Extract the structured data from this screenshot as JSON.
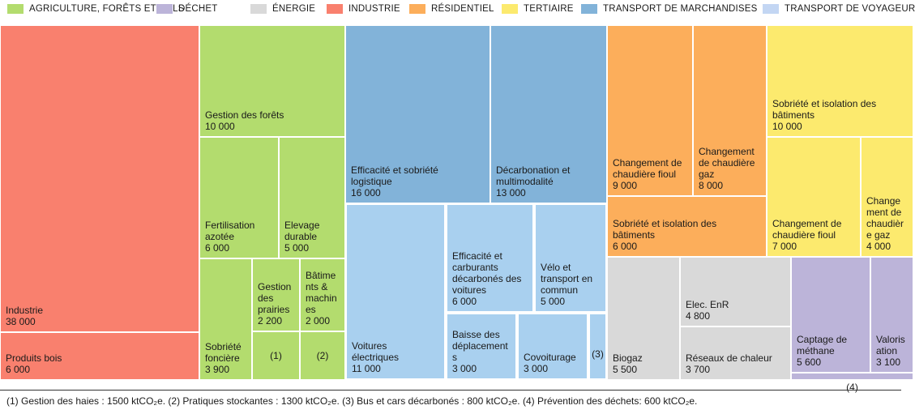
{
  "colors": {
    "agriculture": "#b3dc6e",
    "dechet": "#bcb4d9",
    "energie": "#d9d9d9",
    "industrie": "#f9806e",
    "residentiel": "#fcae5b",
    "tertiaire": "#fcea6e",
    "transport_marchandises": "#82b3d9",
    "transport_voyageurs": "#a9d0ef"
  },
  "legend": [
    {
      "label": "AGRICULTURE, FORÊTS ET SOLS",
      "color": "#b3dc6e"
    },
    {
      "label": "DÉCHET",
      "color": "#bcb4d9"
    },
    {
      "label": "ÉNERGIE",
      "color": "#d9d9d9"
    },
    {
      "label": "INDUSTRIE",
      "color": "#f9806e"
    },
    {
      "label": "RÉSIDENTIEL",
      "color": "#fcae5b"
    },
    {
      "label": "TERTIAIRE",
      "color": "#fcea6e"
    },
    {
      "label": "TRANSPORT DE MARCHANDISES",
      "color": "#82b3d9"
    },
    {
      "label": "TRANSPORT DE VOYAGEURS",
      "color": "#c3d6f3"
    }
  ],
  "chart_data": {
    "type": "treemap",
    "unit": "ktCO2e",
    "items": [
      {
        "sector": "INDUSTRIE",
        "label": "Industrie",
        "value": 38000,
        "value_label": "38 000"
      },
      {
        "sector": "INDUSTRIE",
        "label": "Produits bois",
        "value": 6000,
        "value_label": "6 000"
      },
      {
        "sector": "AGRICULTURE, FORÊTS ET SOLS",
        "label": "Gestion des forêts",
        "value": 10000,
        "value_label": "10 000"
      },
      {
        "sector": "AGRICULTURE, FORÊTS ET SOLS",
        "label": "Fertilisation\nazotée",
        "value": 6000,
        "value_label": "6 000"
      },
      {
        "sector": "AGRICULTURE, FORÊTS ET SOLS",
        "label": "Elevage\ndurable",
        "value": 5000,
        "value_label": "5 000"
      },
      {
        "sector": "AGRICULTURE, FORÊTS ET SOLS",
        "label": "Sobriété\nfoncière",
        "value": 3900,
        "value_label": "3 900"
      },
      {
        "sector": "AGRICULTURE, FORÊTS ET SOLS",
        "label": "Gestion\ndes\nprairies",
        "value": 2200,
        "value_label": "2 200"
      },
      {
        "sector": "AGRICULTURE, FORÊTS ET SOLS",
        "label": "Bâtime\nnts &\nmachin\nes",
        "value": 2000,
        "value_label": "2 000"
      },
      {
        "sector": "AGRICULTURE, FORÊTS ET SOLS",
        "label": "(1)",
        "value": 1500,
        "value_label": ""
      },
      {
        "sector": "AGRICULTURE, FORÊTS ET SOLS",
        "label": "(2)",
        "value": 1300,
        "value_label": ""
      },
      {
        "sector": "TRANSPORT DE MARCHANDISES",
        "label": "Efficacité et sobriété\nlogistique",
        "value": 16000,
        "value_label": "16 000"
      },
      {
        "sector": "TRANSPORT DE MARCHANDISES",
        "label": "Décarbonation et\nmultimodalité",
        "value": 13000,
        "value_label": "13 000"
      },
      {
        "sector": "TRANSPORT DE VOYAGEURS",
        "label": "Voitures\nélectriques",
        "value": 11000,
        "value_label": "11 000"
      },
      {
        "sector": "TRANSPORT DE VOYAGEURS",
        "label": "Efficacité et\ncarburants\ndécarbonés des\nvoitures",
        "value": 6000,
        "value_label": "6 000"
      },
      {
        "sector": "TRANSPORT DE VOYAGEURS",
        "label": "Vélo et\ntransport en\ncommun",
        "value": 5000,
        "value_label": "5 000"
      },
      {
        "sector": "TRANSPORT DE VOYAGEURS",
        "label": "Baisse des\ndéplacement\ns",
        "value": 3000,
        "value_label": "3 000"
      },
      {
        "sector": "TRANSPORT DE VOYAGEURS",
        "label": "Covoiturage",
        "value": 3000,
        "value_label": "3 000"
      },
      {
        "sector": "TRANSPORT DE VOYAGEURS",
        "label": "(3)",
        "value": 800,
        "value_label": ""
      },
      {
        "sector": "RÉSIDENTIEL",
        "label": "Changement de\nchaudière fioul",
        "value": 9000,
        "value_label": "9 000"
      },
      {
        "sector": "RÉSIDENTIEL",
        "label": "Changement\nde chaudière\ngaz",
        "value": 8000,
        "value_label": "8 000"
      },
      {
        "sector": "RÉSIDENTIEL",
        "label": "Sobriété et isolation des\nbâtiments",
        "value": 6000,
        "value_label": "6 000"
      },
      {
        "sector": "TERTIAIRE",
        "label": "Sobriété et isolation des\nbâtiments",
        "value": 10000,
        "value_label": "10 000"
      },
      {
        "sector": "TERTIAIRE",
        "label": "Changement de\nchaudière  fioul",
        "value": 7000,
        "value_label": "7 000"
      },
      {
        "sector": "TERTIAIRE",
        "label": "Change\nment de\nchaudièr\ne gaz",
        "value": 4000,
        "value_label": "4 000"
      },
      {
        "sector": "ÉNERGIE",
        "label": "Biogaz",
        "value": 5500,
        "value_label": "5 500"
      },
      {
        "sector": "ÉNERGIE",
        "label": "Elec. EnR",
        "value": 4800,
        "value_label": "4 800"
      },
      {
        "sector": "ÉNERGIE",
        "label": "Réseaux de chaleur",
        "value": 3700,
        "value_label": "3 700"
      },
      {
        "sector": "DÉCHET",
        "label": "Captage de\nméthane",
        "value": 5600,
        "value_label": "5 600"
      },
      {
        "sector": "DÉCHET",
        "label": "Valoris\nation",
        "value": 3100,
        "value_label": "3 100"
      },
      {
        "sector": "DÉCHET",
        "label": "(4)",
        "value": 600,
        "value_label": ""
      }
    ]
  },
  "footnote": "(1) Gestion des haies : 1500 ktCO₂e. (2) Pratiques stockantes : 1300 ktCO₂e. (3) Bus et cars décarbonés : 800 ktCO₂e. (4) Prévention des déchets: 600 ktCO₂e."
}
